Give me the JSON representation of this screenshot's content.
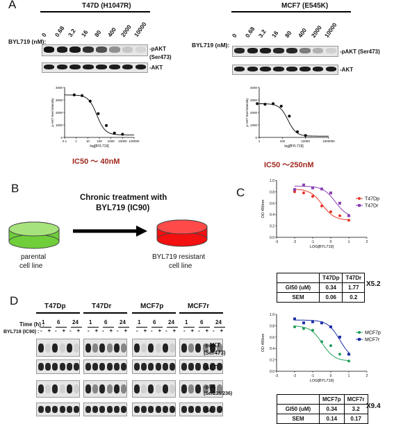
{
  "panelA": {
    "label": "A",
    "left": {
      "cell": "T47D (H1047R)",
      "drug_label": "BYL719 (nM):",
      "concentrations": [
        "0",
        "0.68",
        "3.2",
        "16",
        "80",
        "400",
        "2000",
        "10000"
      ],
      "blot1_label": "-pAKT\n(Ser473)",
      "blot1_label_a": "-pAKT",
      "blot1_label_b": "(Ser473)",
      "blot2_label": "-AKT",
      "pakt_intensity": [
        1.0,
        0.95,
        0.97,
        0.85,
        0.7,
        0.4,
        0.15,
        0.08
      ],
      "ic50": "IC50 ～ 40nM",
      "curve": {
        "ylabel": "p-AKT level intensity",
        "xlabel": "log[BYL719]",
        "yticks": [
          "0",
          "1000",
          "2000",
          "3000",
          "4000"
        ],
        "xticks": [
          "0.1",
          "1",
          "10",
          "100",
          "1000",
          "10000",
          "100000"
        ],
        "points": [
          [
            0.68,
            3400
          ],
          [
            3.2,
            3350
          ],
          [
            16,
            2900
          ],
          [
            80,
            1900
          ],
          [
            400,
            950
          ],
          [
            2000,
            350
          ],
          [
            10000,
            250
          ]
        ]
      }
    },
    "right": {
      "cell": "MCF7 (E545K)",
      "drug_label": "BYL719 (nM):",
      "concentrations": [
        "0",
        "0.68",
        "3.2",
        "16",
        "80",
        "400",
        "2000",
        "10000"
      ],
      "blot1_label": "-pAKT (Ser473)",
      "blot2_label": "-AKT",
      "pakt_intensity": [
        0.9,
        0.95,
        0.95,
        0.9,
        0.9,
        0.5,
        0.25,
        0.1
      ],
      "ic50": "IC50 ～250nM",
      "curve": {
        "ylabel": "p-AKT level intensity",
        "xlabel": "log[BYL719]",
        "yticks": [
          "0",
          "1000",
          "2000",
          "3000",
          "4000"
        ],
        "xticks": [
          "1",
          "100",
          "10000",
          "1000000"
        ],
        "points": [
          [
            0.68,
            2700
          ],
          [
            3.2,
            2650
          ],
          [
            16,
            2700
          ],
          [
            80,
            2500
          ],
          [
            400,
            1700
          ],
          [
            2000,
            450
          ],
          [
            10000,
            150
          ]
        ]
      }
    }
  },
  "panelB": {
    "label": "B",
    "treatment": "Chronic treatment with\nBYL719 (IC90)",
    "treatment_a": "Chronic treatment with",
    "treatment_b": "BYL719 (IC90)",
    "left_dish": "parental\ncell line",
    "left_dish_a": "parental",
    "left_dish_b": "cell line",
    "right_dish_a": "BYL719 resistant",
    "right_dish_b": "cell line",
    "colors": {
      "parental": "#6fce3a",
      "resistant": "#f21010"
    }
  },
  "panelC": {
    "label": "C",
    "top": {
      "ylabel": "OD 490nm",
      "xlabel": "LOG[BYL719]",
      "yticks": [
        "0.0",
        "0.2",
        "0.4",
        "0.6",
        "0.8",
        "1.0"
      ],
      "xticks": [
        "-3",
        "-2",
        "-1",
        "0",
        "1",
        "2"
      ],
      "legend": [
        {
          "name": "T47Dp",
          "color": "#e8352a"
        },
        {
          "name": "T47Dr",
          "color": "#8b3fb5"
        }
      ],
      "table": {
        "headers": [
          "",
          "T47Dp",
          "T47Dr"
        ],
        "rows": [
          [
            "GI50 (uM)",
            "0.34",
            "1.77"
          ],
          [
            "SEM",
            "0.06",
            "0.2"
          ]
        ]
      },
      "fold": "X5.2"
    },
    "bottom": {
      "ylabel": "OD 490nm",
      "xlabel": "LOG[BYL719]",
      "yticks": [
        "0.0",
        "0.2",
        "0.4",
        "0.6",
        "0.8",
        "1.0"
      ],
      "xticks": [
        "-3",
        "-2",
        "-1",
        "0",
        "1",
        "2"
      ],
      "legend": [
        {
          "name": "MCF7p",
          "color": "#1f9e5a"
        },
        {
          "name": "MCF7r",
          "color": "#1e2fa8"
        }
      ],
      "table": {
        "headers": [
          "",
          "MCF7p",
          "MCF7r"
        ],
        "rows": [
          [
            "GI50 (uM)",
            "0.34",
            "3.2"
          ],
          [
            "SEM",
            "0.14",
            "0.17"
          ]
        ]
      },
      "fold": "X9.4"
    }
  },
  "panelD": {
    "label": "D",
    "groups": [
      "T47Dp",
      "T47Dr",
      "MCF7p",
      "MCF7r"
    ],
    "time_label": "Time (h) :",
    "drug_label": "BYL719 (IC90) :",
    "times": [
      "1",
      "6",
      "24"
    ],
    "signs": [
      "-",
      "+",
      "-",
      "+",
      "-",
      "+"
    ],
    "blots": [
      {
        "a": "-pAKT",
        "b": "(Ser473)"
      },
      {
        "a": "-AKT",
        "b": ""
      },
      {
        "a": "-pS6",
        "b": "(Ser235/236)"
      },
      {
        "a": "-S6",
        "b": ""
      }
    ]
  }
}
